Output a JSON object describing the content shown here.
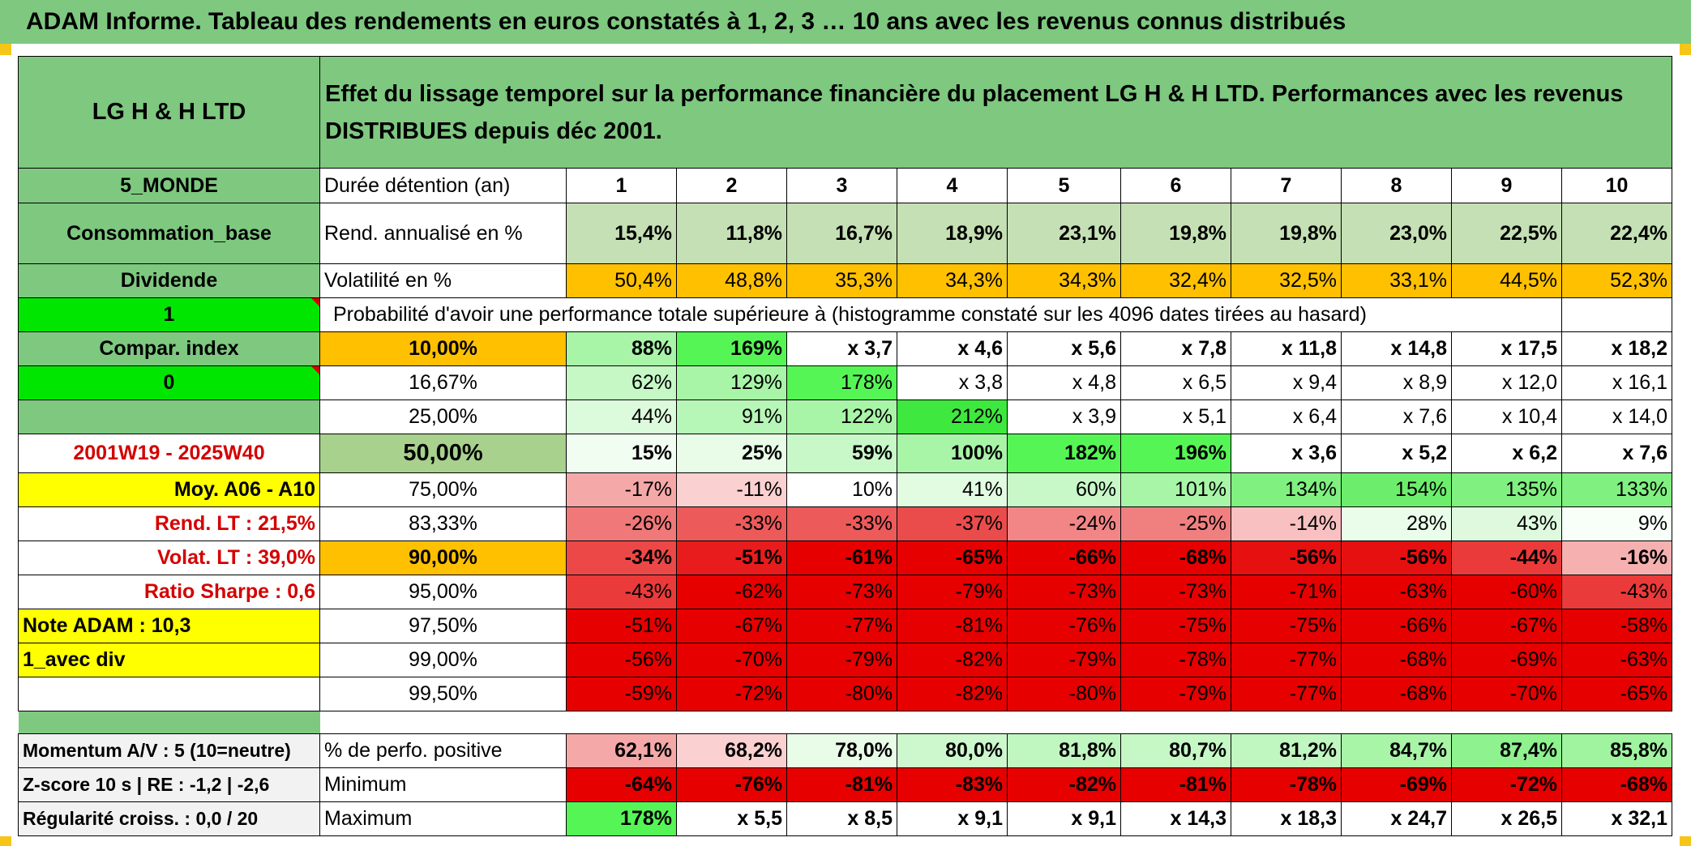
{
  "title": "ADAM Informe. Tableau des rendements en euros constatés à 1, 2, 3 … 10 ans avec les revenus connus distribués",
  "header": {
    "fund_name": "LG H & H LTD",
    "description": "Effet du lissage temporel sur la performance financière du placement LG H & H LTD. Performances avec les revenus DISTRIBUES depuis déc 2001."
  },
  "left_labels": {
    "region": "5_MONDE",
    "sector": "Consommation_base",
    "income": "Dividende",
    "flag1": "1",
    "compar": "Compar. index",
    "flag0": "0",
    "blank": "",
    "period": "2001W19 - 2025W40",
    "moy": "Moy. A06 - A10",
    "rend_lt": "Rend. LT :    21,5%",
    "volat_lt": "Volat. LT :    39,0%",
    "sharpe": "Ratio Sharpe :    0,6",
    "note": "Note ADAM : 10,3",
    "div": "1_avec div",
    "momentum": "Momentum A/V : 5 (10=neutre)",
    "zscore": "Z-score 10 s | RE : -1,2 | -2,6",
    "regularite": "Régularité croiss. : 0,0 / 20"
  },
  "duration": {
    "label": "Durée détention (an)",
    "years": [
      "1",
      "2",
      "3",
      "4",
      "5",
      "6",
      "7",
      "8",
      "9",
      "10"
    ]
  },
  "rend": {
    "label": "Rend. annualisé en %",
    "values": [
      "15,4%",
      "11,8%",
      "16,7%",
      "18,9%",
      "23,1%",
      "19,8%",
      "19,8%",
      "23,0%",
      "22,5%",
      "22,4%"
    ]
  },
  "vol": {
    "label": "Volatilité en %",
    "values": [
      "50,4%",
      "48,8%",
      "35,3%",
      "34,3%",
      "34,3%",
      "32,4%",
      "32,5%",
      "33,1%",
      "44,5%",
      "52,3%"
    ]
  },
  "probability_header": "Probabilité d'avoir une performance totale supérieure à (histogramme constaté sur les 4096 dates tirées au hasard)",
  "quantiles": [
    {
      "label": "10,00%",
      "values": [
        "88%",
        "169%",
        "x 3,7",
        "x 4,6",
        "x 5,6",
        "x 7,8",
        "x 11,8",
        "x 14,8",
        "x 17,5",
        "x 18,2"
      ],
      "colors": [
        "#a8f5a8",
        "#56f556",
        "#fff",
        "#fff",
        "#fff",
        "#fff",
        "#fff",
        "#fff",
        "#fff",
        "#fff"
      ]
    },
    {
      "label": "16,67%",
      "values": [
        "62%",
        "129%",
        "178%",
        "x 3,8",
        "x 4,8",
        "x 6,5",
        "x 9,4",
        "x 8,9",
        "x 12,0",
        "x 16,1"
      ],
      "colors": [
        "#c5f8c5",
        "#a8f5a8",
        "#56f556",
        "#fff",
        "#fff",
        "#fff",
        "#fff",
        "#fff",
        "#fff",
        "#fff"
      ]
    },
    {
      "label": "25,00%",
      "values": [
        "44%",
        "91%",
        "122%",
        "212%",
        "x 3,9",
        "x 5,1",
        "x 6,4",
        "x 7,6",
        "x 10,4",
        "x 14,0"
      ],
      "colors": [
        "#dcfbdc",
        "#b6f6b6",
        "#a8f5a8",
        "#3ee83e",
        "#fff",
        "#fff",
        "#fff",
        "#fff",
        "#fff",
        "#fff"
      ]
    },
    {
      "label": "50,00%",
      "values": [
        "15%",
        "25%",
        "59%",
        "100%",
        "182%",
        "196%",
        "x 3,6",
        "x 5,2",
        "x 6,2",
        "x 7,6"
      ],
      "colors": [
        "#f2fdf2",
        "#e8fce8",
        "#c8f8c8",
        "#a8f5a8",
        "#56f556",
        "#56f556",
        "#fff",
        "#fff",
        "#fff",
        "#fff"
      ]
    },
    {
      "label": "75,00%",
      "values": [
        "-17%",
        "-11%",
        "10%",
        "41%",
        "60%",
        "101%",
        "134%",
        "154%",
        "135%",
        "133%"
      ],
      "colors": [
        "#f5a8a8",
        "#fbd0d0",
        "#ffffff",
        "#e2fce2",
        "#c8f8c8",
        "#a8f5a8",
        "#80f080",
        "#6cee6c",
        "#80f080",
        "#80f080"
      ]
    },
    {
      "label": "83,33%",
      "values": [
        "-26%",
        "-33%",
        "-33%",
        "-37%",
        "-24%",
        "-25%",
        "-14%",
        "28%",
        "43%",
        "9%"
      ],
      "colors": [
        "#f07878",
        "#ec5a5a",
        "#ec5a5a",
        "#ea4c4c",
        "#f28686",
        "#f08080",
        "#f8c0c0",
        "#eafdea",
        "#def9de",
        "#f8fff8"
      ]
    },
    {
      "label": "90,00%",
      "values": [
        "-34%",
        "-51%",
        "-61%",
        "-65%",
        "-66%",
        "-68%",
        "-56%",
        "-56%",
        "-44%",
        "-16%"
      ],
      "colors": [
        "#ec4848",
        "#e81c1c",
        "#e60000",
        "#e60000",
        "#e60000",
        "#e60000",
        "#e61010",
        "#e61010",
        "#ea3a3a",
        "#f6b0b0"
      ]
    },
    {
      "label": "95,00%",
      "values": [
        "-43%",
        "-62%",
        "-73%",
        "-79%",
        "-73%",
        "-73%",
        "-71%",
        "-63%",
        "-60%",
        "-43%"
      ],
      "colors": [
        "#ea3a3a",
        "#e60000",
        "#e60000",
        "#e60000",
        "#e60000",
        "#e60000",
        "#e60000",
        "#e60000",
        "#e60000",
        "#ea3a3a"
      ]
    },
    {
      "label": "97,50%",
      "values": [
        "-51%",
        "-67%",
        "-77%",
        "-81%",
        "-76%",
        "-75%",
        "-75%",
        "-66%",
        "-67%",
        "-58%"
      ],
      "colors": [
        "#e60000",
        "#e60000",
        "#e60000",
        "#e60000",
        "#e60000",
        "#e60000",
        "#e60000",
        "#e60000",
        "#e60000",
        "#e60000"
      ]
    },
    {
      "label": "99,00%",
      "values": [
        "-56%",
        "-70%",
        "-79%",
        "-82%",
        "-79%",
        "-78%",
        "-77%",
        "-68%",
        "-69%",
        "-63%"
      ],
      "colors": [
        "#e60000",
        "#e60000",
        "#e60000",
        "#e60000",
        "#e60000",
        "#e60000",
        "#e60000",
        "#e60000",
        "#e60000",
        "#e60000"
      ]
    },
    {
      "label": "99,50%",
      "values": [
        "-59%",
        "-72%",
        "-80%",
        "-82%",
        "-80%",
        "-79%",
        "-77%",
        "-68%",
        "-70%",
        "-65%"
      ],
      "colors": [
        "#e60000",
        "#e60000",
        "#e60000",
        "#e60000",
        "#e60000",
        "#e60000",
        "#e60000",
        "#e60000",
        "#e60000",
        "#e60000"
      ]
    }
  ],
  "summary": [
    {
      "label": "% de perfo. positive",
      "values": [
        "62,1%",
        "68,2%",
        "78,0%",
        "80,0%",
        "81,8%",
        "80,7%",
        "81,2%",
        "84,7%",
        "87,4%",
        "85,8%"
      ],
      "colors": [
        "#f5a8a8",
        "#fbd0d0",
        "#e8fce8",
        "#cdf8cd",
        "#c0f7c0",
        "#c5f8c5",
        "#c0f7c0",
        "#a8f5a8",
        "#8ef28e",
        "#a0f4a0"
      ]
    },
    {
      "label": "Minimum",
      "values": [
        "-64%",
        "-76%",
        "-81%",
        "-83%",
        "-82%",
        "-81%",
        "-78%",
        "-69%",
        "-72%",
        "-68%"
      ],
      "colors": [
        "#e60000",
        "#e60000",
        "#e60000",
        "#e60000",
        "#e60000",
        "#e60000",
        "#e60000",
        "#e60000",
        "#e60000",
        "#e60000"
      ]
    },
    {
      "label": "Maximum",
      "values": [
        "178%",
        "x 5,5",
        "x 8,5",
        "x 9,1",
        "x 9,1",
        "x 14,3",
        "x 18,3",
        "x 24,7",
        "x 26,5",
        "x 32,1"
      ],
      "colors": [
        "#56f556",
        "#fff",
        "#fff",
        "#fff",
        "#fff",
        "#fff",
        "#fff",
        "#fff",
        "#fff",
        "#fff"
      ]
    }
  ],
  "colors": {
    "header_green": "#7ec880",
    "light_green": "#c5e0b4",
    "orange": "#ffc000",
    "yellow": "#ffff00",
    "bright_green": "#00e600",
    "median_green": "#a9d18e",
    "light_gray": "#f2f2f2",
    "accent_red": "#d40000"
  }
}
